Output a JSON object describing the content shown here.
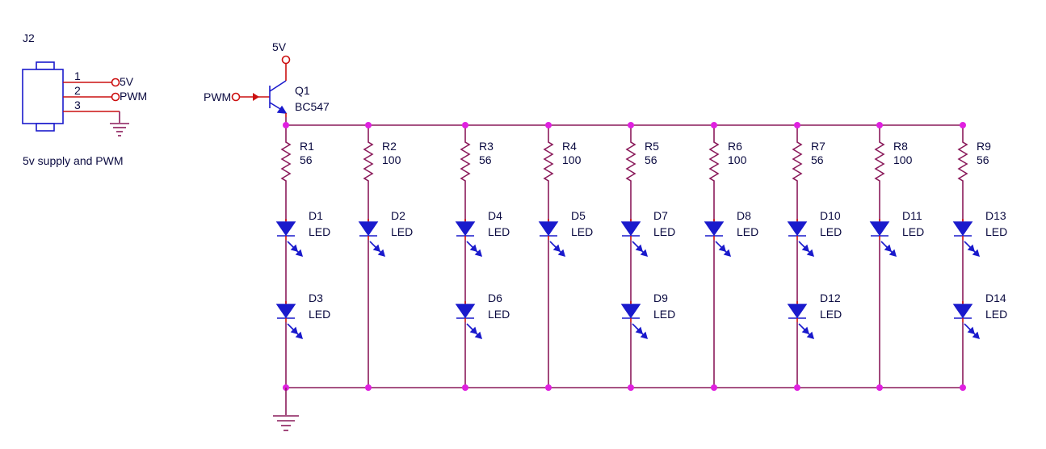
{
  "connector": {
    "ref": "J2",
    "pins": [
      {
        "num": "1",
        "net": "5V"
      },
      {
        "num": "2",
        "net": "PWM"
      },
      {
        "num": "3",
        "net": ""
      }
    ],
    "caption": "5v supply and PWM"
  },
  "transistor": {
    "ref": "Q1",
    "value": "BC547",
    "supply_label": "5V",
    "input_label": "PWM"
  },
  "columns": [
    {
      "resistor": {
        "ref": "R1",
        "value": "56"
      },
      "leds": [
        {
          "ref": "D1",
          "value": "LED"
        },
        {
          "ref": "D3",
          "value": "LED"
        }
      ]
    },
    {
      "resistor": {
        "ref": "R2",
        "value": "100"
      },
      "leds": [
        {
          "ref": "D2",
          "value": "LED"
        }
      ]
    },
    {
      "resistor": {
        "ref": "R3",
        "value": "56"
      },
      "leds": [
        {
          "ref": "D4",
          "value": "LED"
        },
        {
          "ref": "D6",
          "value": "LED"
        }
      ]
    },
    {
      "resistor": {
        "ref": "R4",
        "value": "100"
      },
      "leds": [
        {
          "ref": "D5",
          "value": "LED"
        }
      ]
    },
    {
      "resistor": {
        "ref": "R5",
        "value": "56"
      },
      "leds": [
        {
          "ref": "D7",
          "value": "LED"
        },
        {
          "ref": "D9",
          "value": "LED"
        }
      ]
    },
    {
      "resistor": {
        "ref": "R6",
        "value": "100"
      },
      "leds": [
        {
          "ref": "D8",
          "value": "LED"
        }
      ]
    },
    {
      "resistor": {
        "ref": "R7",
        "value": "56"
      },
      "leds": [
        {
          "ref": "D10",
          "value": "LED"
        },
        {
          "ref": "D12",
          "value": "LED"
        }
      ]
    },
    {
      "resistor": {
        "ref": "R8",
        "value": "100"
      },
      "leds": [
        {
          "ref": "D11",
          "value": "LED"
        }
      ]
    },
    {
      "resistor": {
        "ref": "R9",
        "value": "56"
      },
      "leds": [
        {
          "ref": "D13",
          "value": "LED"
        },
        {
          "ref": "D14",
          "value": "LED"
        }
      ]
    }
  ],
  "colors": {
    "wire": "#8a1a5a",
    "symbol": "#1a1acc",
    "pin": "#cc1010",
    "junction": "#e020e0",
    "text": "#0a0a40"
  }
}
